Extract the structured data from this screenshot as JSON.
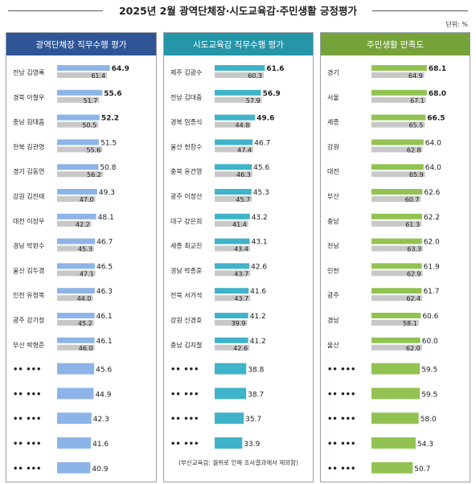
{
  "title": "2025년 2월 광역단체장·시도교육감·주민생활 긍정평가",
  "unit": "단위: %",
  "colors": {
    "panel1_header": "#2f5597",
    "panel2_header": "#2596a8",
    "panel3_header": "#76a23a",
    "bar1": "#8db4e8",
    "bar2": "#3fb3c9",
    "bar3": "#92c352",
    "prev_bar": "#c8c8c8"
  },
  "chart_data": [
    {
      "type": "bar",
      "title": "광역단체장 직무수행 평가",
      "categories": [
        "전남 김영록",
        "경북 이철우",
        "충남 김태흠",
        "전북 김관영",
        "경기 김동연",
        "강원 김진태",
        "대전 이장우",
        "경남 박완수",
        "울산 김두겸",
        "인천 유정복",
        "광주 강기정",
        "부산 박형준",
        "•• •••",
        "•• •••",
        "•• •••",
        "•• •••",
        "•• •••"
      ],
      "series": [
        {
          "values": [
            64.9,
            55.6,
            52.2,
            51.5,
            50.8,
            49.3,
            48.1,
            46.7,
            46.5,
            46.3,
            46.1,
            46.1,
            45.6,
            44.9,
            42.3,
            41.6,
            40.9
          ]
        },
        {
          "values": [
            61.4,
            51.7,
            50.5,
            55.6,
            56.2,
            47.0,
            42.2,
            45.3,
            47.1,
            44.0,
            45.2,
            46.0,
            null,
            null,
            null,
            null,
            null
          ]
        }
      ],
      "bold_top": 3,
      "note": ""
    },
    {
      "type": "bar",
      "title": "시도교육감 직무수행 평가",
      "categories": [
        "제주 김광수",
        "전남 김대중",
        "경북 임종식",
        "울산 천창수",
        "충북 윤건영",
        "광주 이정선",
        "대구 강은희",
        "세종 최교진",
        "경남 박종훈",
        "전북 서거석",
        "강원 신경호",
        "충남 김지철",
        "•• •••",
        "•• •••",
        "•• •••",
        "•• •••"
      ],
      "series": [
        {
          "values": [
            61.6,
            56.9,
            49.6,
            46.7,
            45.6,
            45.3,
            43.2,
            43.1,
            42.6,
            41.6,
            41.2,
            41.2,
            38.8,
            38.7,
            35.7,
            33.9
          ]
        },
        {
          "values": [
            60.3,
            57.9,
            44.8,
            47.4,
            46.3,
            45.7,
            41.4,
            43.4,
            43.7,
            43.7,
            39.9,
            42.6,
            null,
            null,
            null,
            null
          ]
        }
      ],
      "bold_top": 3,
      "note": "(부산교육감: 궐위로 인해 조사결과에서 제외함)"
    },
    {
      "type": "bar",
      "title": "주민생활 만족도",
      "categories": [
        "경기",
        "서울",
        "세종",
        "강원",
        "대전",
        "부산",
        "충남",
        "전남",
        "인천",
        "광주",
        "경남",
        "울산",
        "•• •••",
        "•• •••",
        "•• •••",
        "•• •••",
        "•• •••"
      ],
      "series": [
        {
          "values": [
            68.1,
            68.0,
            66.5,
            64.0,
            64.0,
            62.6,
            62.2,
            62.0,
            61.9,
            61.7,
            60.6,
            60.0,
            59.5,
            59.5,
            58.0,
            54.3,
            50.7
          ]
        },
        {
          "values": [
            64.9,
            67.1,
            65.5,
            62.8,
            65.9,
            60.7,
            61.3,
            63.3,
            62.9,
            62.4,
            58.1,
            62.0,
            null,
            null,
            null,
            null,
            null
          ]
        }
      ],
      "bold_top": 3,
      "note": ""
    }
  ]
}
